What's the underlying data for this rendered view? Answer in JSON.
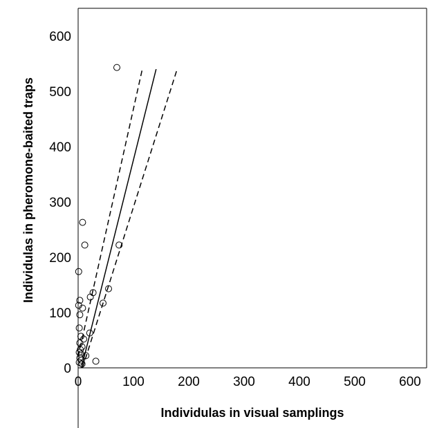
{
  "chart_data": {
    "type": "scatter",
    "xlabel": "Individulas in visual samplings",
    "ylabel": "Individulas in pheromone-baited traps",
    "xlim": [
      0,
      630
    ],
    "ylim": [
      0,
      650
    ],
    "x_ticks": [
      "0",
      "100",
      "200",
      "300",
      "400",
      "500",
      "600"
    ],
    "y_ticks": [
      "0",
      "100",
      "200",
      "300",
      "400",
      "500",
      "600"
    ],
    "grid": false,
    "legend": "none",
    "series": [
      {
        "type": "scatter",
        "marker": "open-circle",
        "points": [
          {
            "x": 70,
            "y": 543
          },
          {
            "x": 8,
            "y": 263
          },
          {
            "x": 12,
            "y": 222
          },
          {
            "x": 74,
            "y": 222
          },
          {
            "x": 1,
            "y": 174
          },
          {
            "x": 55,
            "y": 143
          },
          {
            "x": 27,
            "y": 136
          },
          {
            "x": 22,
            "y": 128
          },
          {
            "x": 3,
            "y": 122
          },
          {
            "x": 45,
            "y": 117
          },
          {
            "x": 1,
            "y": 113
          },
          {
            "x": 8,
            "y": 108
          },
          {
            "x": 3,
            "y": 96
          },
          {
            "x": 2,
            "y": 72
          },
          {
            "x": 21,
            "y": 63
          },
          {
            "x": 5,
            "y": 57
          },
          {
            "x": 10,
            "y": 52
          },
          {
            "x": 3,
            "y": 45
          },
          {
            "x": 7,
            "y": 38
          },
          {
            "x": 4,
            "y": 33
          },
          {
            "x": 2,
            "y": 28
          },
          {
            "x": 5,
            "y": 25
          },
          {
            "x": 14,
            "y": 22
          },
          {
            "x": 3,
            "y": 18
          },
          {
            "x": 6,
            "y": 14
          },
          {
            "x": 32,
            "y": 12
          },
          {
            "x": 2,
            "y": 10
          },
          {
            "x": 7,
            "y": 7
          }
        ]
      },
      {
        "type": "line",
        "style": "solid",
        "points": [
          {
            "x": 6,
            "y": 0
          },
          {
            "x": 141,
            "y": 540
          }
        ]
      },
      {
        "type": "line",
        "style": "dashed",
        "points": [
          {
            "x": 0,
            "y": 20
          },
          {
            "x": 116,
            "y": 540
          }
        ]
      },
      {
        "type": "line",
        "style": "dashed",
        "points": [
          {
            "x": 8,
            "y": 0
          },
          {
            "x": 179,
            "y": 540
          }
        ]
      }
    ]
  }
}
